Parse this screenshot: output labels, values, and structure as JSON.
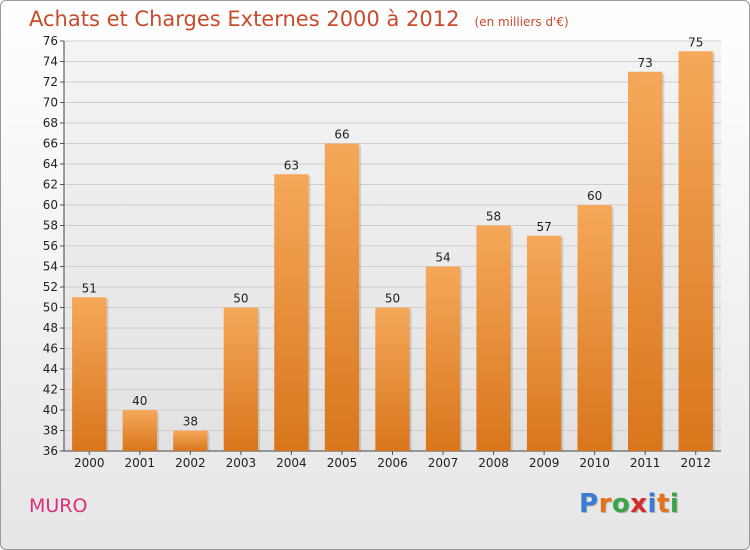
{
  "header": {
    "title": "Achats et Charges Externes 2000 à 2012",
    "subtitle": "(en milliers d'€)"
  },
  "footer": {
    "commune": "MURO",
    "logo_letters": [
      "P",
      "r",
      "o",
      "x",
      "i",
      "t",
      "i"
    ],
    "logo_colors": [
      "#3a7bd5",
      "#e8721c",
      "#3aa54a",
      "#d62c2c",
      "#3a7bd5",
      "#e8721c",
      "#3aa54a"
    ]
  },
  "chart_data": {
    "type": "bar",
    "title": "Achats et Charges Externes 2000 à 2012",
    "subtitle": "(en milliers d'€)",
    "categories": [
      "2000",
      "2001",
      "2002",
      "2003",
      "2004",
      "2005",
      "2006",
      "2007",
      "2008",
      "2009",
      "2010",
      "2011",
      "2012"
    ],
    "values": [
      51,
      40,
      38,
      50,
      63,
      66,
      50,
      54,
      58,
      57,
      60,
      73,
      75
    ],
    "ylim": [
      36,
      76
    ],
    "ytick_step": 2,
    "grid": true,
    "bar_color_top": "#f5a85a",
    "bar_color_bottom": "#d9761c"
  }
}
